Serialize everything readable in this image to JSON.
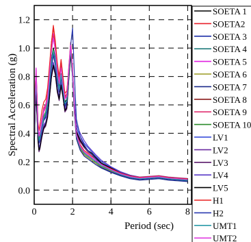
{
  "chart_data": {
    "type": "line",
    "title": "",
    "xlabel": "Period (sec)",
    "ylabel": "Spectral Acceleration (g)",
    "xlim": [
      0,
      8.2
    ],
    "ylim": [
      -0.1,
      1.3
    ],
    "x_ticks": [
      "0",
      "2",
      "4",
      "6",
      "8"
    ],
    "y_ticks": [
      "0.0",
      "0.2",
      "0.4",
      "0.6",
      "0.8",
      "1.0",
      "1.2"
    ],
    "x_tick_values": [
      0,
      2,
      4,
      6,
      8
    ],
    "y_tick_values": [
      0.0,
      0.2,
      0.4,
      0.6,
      0.8,
      1.0,
      1.2
    ],
    "grid": "dashed",
    "legend_position": "right",
    "x": [
      0.0,
      0.05,
      0.1,
      0.15,
      0.2,
      0.25,
      0.3,
      0.4,
      0.5,
      0.6,
      0.7,
      0.8,
      0.9,
      1.0,
      1.1,
      1.2,
      1.3,
      1.4,
      1.5,
      1.6,
      1.7,
      1.8,
      1.9,
      2.0,
      2.1,
      2.2,
      2.4,
      2.6,
      2.8,
      3.0,
      3.2,
      3.5,
      4.0,
      4.5,
      5.0,
      5.5,
      6.0,
      6.5,
      7.0,
      7.5,
      8.0
    ],
    "series": [
      {
        "name": "SOETA 1",
        "color": "#000000",
        "values": [
          0.36,
          0.65,
          0.8,
          0.62,
          0.43,
          0.36,
          0.38,
          0.46,
          0.52,
          0.55,
          0.62,
          0.78,
          0.92,
          1.0,
          0.93,
          0.8,
          0.72,
          0.82,
          0.72,
          0.62,
          0.64,
          0.82,
          1.0,
          0.82,
          0.55,
          0.38,
          0.3,
          0.26,
          0.24,
          0.22,
          0.2,
          0.17,
          0.14,
          0.11,
          0.09,
          0.08,
          0.085,
          0.09,
          0.08,
          0.075,
          0.07
        ]
      },
      {
        "name": "SOETA2",
        "color": "#e8202a",
        "values": [
          0.38,
          0.7,
          0.85,
          0.65,
          0.45,
          0.38,
          0.4,
          0.5,
          0.58,
          0.6,
          0.68,
          0.86,
          1.04,
          1.14,
          1.03,
          0.88,
          0.78,
          0.9,
          0.78,
          0.66,
          0.68,
          0.86,
          1.04,
          0.86,
          0.58,
          0.4,
          0.32,
          0.28,
          0.26,
          0.24,
          0.22,
          0.19,
          0.15,
          0.12,
          0.1,
          0.085,
          0.09,
          0.1,
          0.09,
          0.08,
          0.075
        ]
      },
      {
        "name": "SOETA 3",
        "color": "#1c2fa8",
        "values": [
          0.33,
          0.6,
          0.74,
          0.58,
          0.4,
          0.34,
          0.36,
          0.44,
          0.5,
          0.52,
          0.58,
          0.74,
          0.88,
          0.97,
          0.9,
          0.77,
          0.7,
          0.8,
          0.7,
          0.6,
          0.62,
          0.8,
          0.98,
          0.8,
          0.54,
          0.37,
          0.29,
          0.25,
          0.23,
          0.21,
          0.19,
          0.16,
          0.13,
          0.105,
          0.085,
          0.075,
          0.08,
          0.085,
          0.075,
          0.07,
          0.065
        ]
      },
      {
        "name": "SOETA 4",
        "color": "#1f7a7a",
        "values": [
          0.35,
          0.62,
          0.77,
          0.6,
          0.42,
          0.35,
          0.37,
          0.45,
          0.51,
          0.54,
          0.6,
          0.76,
          0.9,
          0.98,
          0.92,
          0.79,
          0.71,
          0.81,
          0.71,
          0.61,
          0.63,
          0.81,
          0.99,
          0.81,
          0.55,
          0.38,
          0.3,
          0.26,
          0.24,
          0.22,
          0.2,
          0.17,
          0.14,
          0.11,
          0.09,
          0.08,
          0.085,
          0.09,
          0.08,
          0.075,
          0.07
        ]
      },
      {
        "name": "SOETA 5",
        "color": "#e020e0",
        "values": [
          0.4,
          0.72,
          0.86,
          0.66,
          0.46,
          0.39,
          0.41,
          0.5,
          0.57,
          0.6,
          0.66,
          0.84,
          1.0,
          1.1,
          1.0,
          0.86,
          0.77,
          0.88,
          0.76,
          0.65,
          0.67,
          0.85,
          1.03,
          0.85,
          0.57,
          0.39,
          0.31,
          0.27,
          0.25,
          0.23,
          0.21,
          0.18,
          0.145,
          0.115,
          0.095,
          0.085,
          0.09,
          0.095,
          0.085,
          0.08,
          0.075
        ]
      },
      {
        "name": "SOETA 6",
        "color": "#9a9a20",
        "values": [
          0.34,
          0.61,
          0.76,
          0.59,
          0.41,
          0.35,
          0.37,
          0.45,
          0.51,
          0.53,
          0.59,
          0.75,
          0.89,
          0.98,
          0.91,
          0.78,
          0.71,
          0.81,
          0.71,
          0.61,
          0.63,
          0.81,
          0.98,
          0.81,
          0.54,
          0.37,
          0.29,
          0.25,
          0.23,
          0.21,
          0.19,
          0.165,
          0.135,
          0.11,
          0.09,
          0.08,
          0.085,
          0.09,
          0.08,
          0.075,
          0.07
        ]
      },
      {
        "name": "SOETA 7",
        "color": "#1a2a8a",
        "values": [
          0.32,
          0.58,
          0.72,
          0.56,
          0.39,
          0.33,
          0.35,
          0.43,
          0.49,
          0.51,
          0.57,
          0.72,
          0.86,
          0.95,
          0.88,
          0.76,
          0.69,
          0.79,
          0.69,
          0.59,
          0.61,
          0.79,
          0.97,
          0.79,
          0.53,
          0.36,
          0.28,
          0.24,
          0.22,
          0.2,
          0.18,
          0.155,
          0.125,
          0.1,
          0.08,
          0.07,
          0.075,
          0.08,
          0.07,
          0.065,
          0.06
        ]
      },
      {
        "name": "SOETA  8",
        "color": "#8a1a1a",
        "values": [
          0.37,
          0.66,
          0.81,
          0.63,
          0.44,
          0.37,
          0.39,
          0.48,
          0.55,
          0.58,
          0.64,
          0.82,
          0.98,
          1.08,
          0.99,
          0.85,
          0.76,
          0.87,
          0.75,
          0.64,
          0.66,
          0.84,
          1.02,
          0.84,
          0.57,
          0.39,
          0.31,
          0.27,
          0.25,
          0.23,
          0.21,
          0.18,
          0.145,
          0.115,
          0.095,
          0.085,
          0.09,
          0.095,
          0.085,
          0.08,
          0.075
        ]
      },
      {
        "name": "SOETA 9",
        "color": "#e03070",
        "values": [
          0.39,
          0.68,
          0.83,
          0.64,
          0.45,
          0.38,
          0.4,
          0.49,
          0.56,
          0.59,
          0.65,
          0.83,
          0.99,
          1.09,
          0.99,
          0.85,
          0.76,
          0.88,
          0.76,
          0.65,
          0.67,
          0.85,
          1.03,
          0.85,
          0.57,
          0.39,
          0.31,
          0.27,
          0.25,
          0.23,
          0.21,
          0.18,
          0.145,
          0.115,
          0.095,
          0.085,
          0.09,
          0.095,
          0.085,
          0.08,
          0.075
        ]
      },
      {
        "name": "SOETA 10",
        "color": "#2a8a2a",
        "values": [
          0.35,
          0.63,
          0.78,
          0.61,
          0.42,
          0.36,
          0.38,
          0.46,
          0.52,
          0.55,
          0.61,
          0.77,
          0.91,
          0.99,
          0.92,
          0.79,
          0.71,
          0.82,
          0.71,
          0.61,
          0.63,
          0.81,
          0.99,
          0.81,
          0.55,
          0.38,
          0.3,
          0.26,
          0.24,
          0.22,
          0.2,
          0.17,
          0.14,
          0.11,
          0.09,
          0.08,
          0.085,
          0.09,
          0.08,
          0.075,
          0.07
        ]
      },
      {
        "name": "LV1",
        "color": "#2a40d8",
        "values": [
          0.3,
          0.55,
          0.68,
          0.52,
          0.35,
          0.28,
          0.3,
          0.38,
          0.44,
          0.46,
          0.52,
          0.66,
          0.8,
          0.88,
          0.82,
          0.7,
          0.64,
          0.74,
          0.66,
          0.56,
          0.58,
          0.78,
          0.96,
          0.82,
          0.6,
          0.44,
          0.38,
          0.33,
          0.3,
          0.27,
          0.24,
          0.2,
          0.16,
          0.125,
          0.1,
          0.09,
          0.095,
          0.1,
          0.09,
          0.085,
          0.08
        ]
      },
      {
        "name": "LV2",
        "color": "#6a2aa0",
        "values": [
          0.31,
          0.56,
          0.7,
          0.53,
          0.36,
          0.29,
          0.31,
          0.39,
          0.45,
          0.47,
          0.53,
          0.67,
          0.81,
          0.89,
          0.83,
          0.71,
          0.65,
          0.75,
          0.67,
          0.57,
          0.59,
          0.79,
          0.97,
          0.82,
          0.58,
          0.42,
          0.36,
          0.31,
          0.28,
          0.26,
          0.23,
          0.19,
          0.155,
          0.12,
          0.1,
          0.088,
          0.093,
          0.098,
          0.088,
          0.083,
          0.078
        ]
      },
      {
        "name": "LV3",
        "color": "#5a1a6a",
        "values": [
          0.29,
          0.54,
          0.66,
          0.51,
          0.34,
          0.27,
          0.29,
          0.37,
          0.43,
          0.45,
          0.51,
          0.65,
          0.79,
          0.87,
          0.81,
          0.69,
          0.63,
          0.73,
          0.65,
          0.55,
          0.57,
          0.77,
          0.95,
          0.8,
          0.56,
          0.4,
          0.34,
          0.3,
          0.27,
          0.25,
          0.22,
          0.185,
          0.15,
          0.118,
          0.097,
          0.086,
          0.09,
          0.095,
          0.086,
          0.08,
          0.075
        ]
      },
      {
        "name": "LV4",
        "color": "#5a3ac8",
        "values": [
          0.32,
          0.57,
          0.71,
          0.54,
          0.37,
          0.3,
          0.32,
          0.4,
          0.46,
          0.48,
          0.54,
          0.68,
          0.82,
          0.9,
          0.84,
          0.72,
          0.66,
          0.76,
          0.68,
          0.58,
          0.6,
          0.8,
          0.98,
          0.83,
          0.62,
          0.46,
          0.4,
          0.35,
          0.31,
          0.28,
          0.25,
          0.21,
          0.165,
          0.13,
          0.105,
          0.092,
          0.097,
          0.102,
          0.092,
          0.087,
          0.082
        ]
      },
      {
        "name": "LV5",
        "color": "#000000",
        "values": [
          0.3,
          0.55,
          0.67,
          0.52,
          0.35,
          0.28,
          0.3,
          0.38,
          0.44,
          0.46,
          0.52,
          0.66,
          0.8,
          0.88,
          0.82,
          0.7,
          0.64,
          0.74,
          0.66,
          0.56,
          0.58,
          0.78,
          0.96,
          0.81,
          0.57,
          0.41,
          0.35,
          0.31,
          0.28,
          0.26,
          0.23,
          0.19,
          0.155,
          0.12,
          0.1,
          0.088,
          0.093,
          0.098,
          0.088,
          0.083,
          0.078
        ]
      },
      {
        "name": "H1",
        "color": "#e82020",
        "values": [
          0.42,
          0.74,
          0.8,
          0.66,
          0.48,
          0.42,
          0.46,
          0.56,
          0.62,
          0.64,
          0.72,
          0.88,
          1.04,
          1.16,
          1.05,
          0.9,
          0.8,
          0.92,
          0.8,
          0.68,
          0.7,
          0.84,
          1.0,
          0.84,
          0.56,
          0.38,
          0.3,
          0.27,
          0.25,
          0.23,
          0.21,
          0.18,
          0.15,
          0.12,
          0.1,
          0.09,
          0.095,
          0.1,
          0.09,
          0.085,
          0.08
        ]
      },
      {
        "name": "H2",
        "color": "#2a3ab0",
        "values": [
          0.34,
          0.6,
          0.75,
          0.58,
          0.4,
          0.34,
          0.36,
          0.44,
          0.5,
          0.52,
          0.58,
          0.74,
          0.88,
          0.96,
          0.9,
          0.77,
          0.7,
          0.8,
          0.7,
          0.6,
          0.62,
          0.82,
          1.02,
          1.14,
          0.8,
          0.5,
          0.38,
          0.32,
          0.28,
          0.25,
          0.22,
          0.18,
          0.145,
          0.115,
          0.095,
          0.085,
          0.09,
          0.095,
          0.085,
          0.08,
          0.075
        ]
      },
      {
        "name": "UMT1",
        "color": "#2a9aa8",
        "values": [
          0.35,
          0.62,
          0.77,
          0.6,
          0.42,
          0.35,
          0.37,
          0.45,
          0.51,
          0.54,
          0.6,
          0.76,
          0.9,
          0.98,
          0.92,
          0.79,
          0.71,
          0.81,
          0.71,
          0.61,
          0.63,
          0.81,
          0.99,
          0.81,
          0.55,
          0.38,
          0.3,
          0.26,
          0.24,
          0.22,
          0.2,
          0.17,
          0.14,
          0.11,
          0.09,
          0.08,
          0.085,
          0.09,
          0.08,
          0.075,
          0.07
        ]
      },
      {
        "name": "UMT2",
        "color": "#e040e0",
        "values": [
          0.38,
          0.68,
          0.83,
          0.64,
          0.44,
          0.38,
          0.4,
          0.48,
          0.55,
          0.58,
          0.64,
          0.82,
          0.98,
          1.07,
          0.98,
          0.84,
          0.75,
          0.86,
          0.75,
          0.64,
          0.66,
          0.84,
          1.02,
          0.84,
          0.56,
          0.39,
          0.31,
          0.27,
          0.25,
          0.23,
          0.21,
          0.18,
          0.145,
          0.115,
          0.095,
          0.085,
          0.09,
          0.095,
          0.085,
          0.08,
          0.075
        ]
      }
    ]
  }
}
